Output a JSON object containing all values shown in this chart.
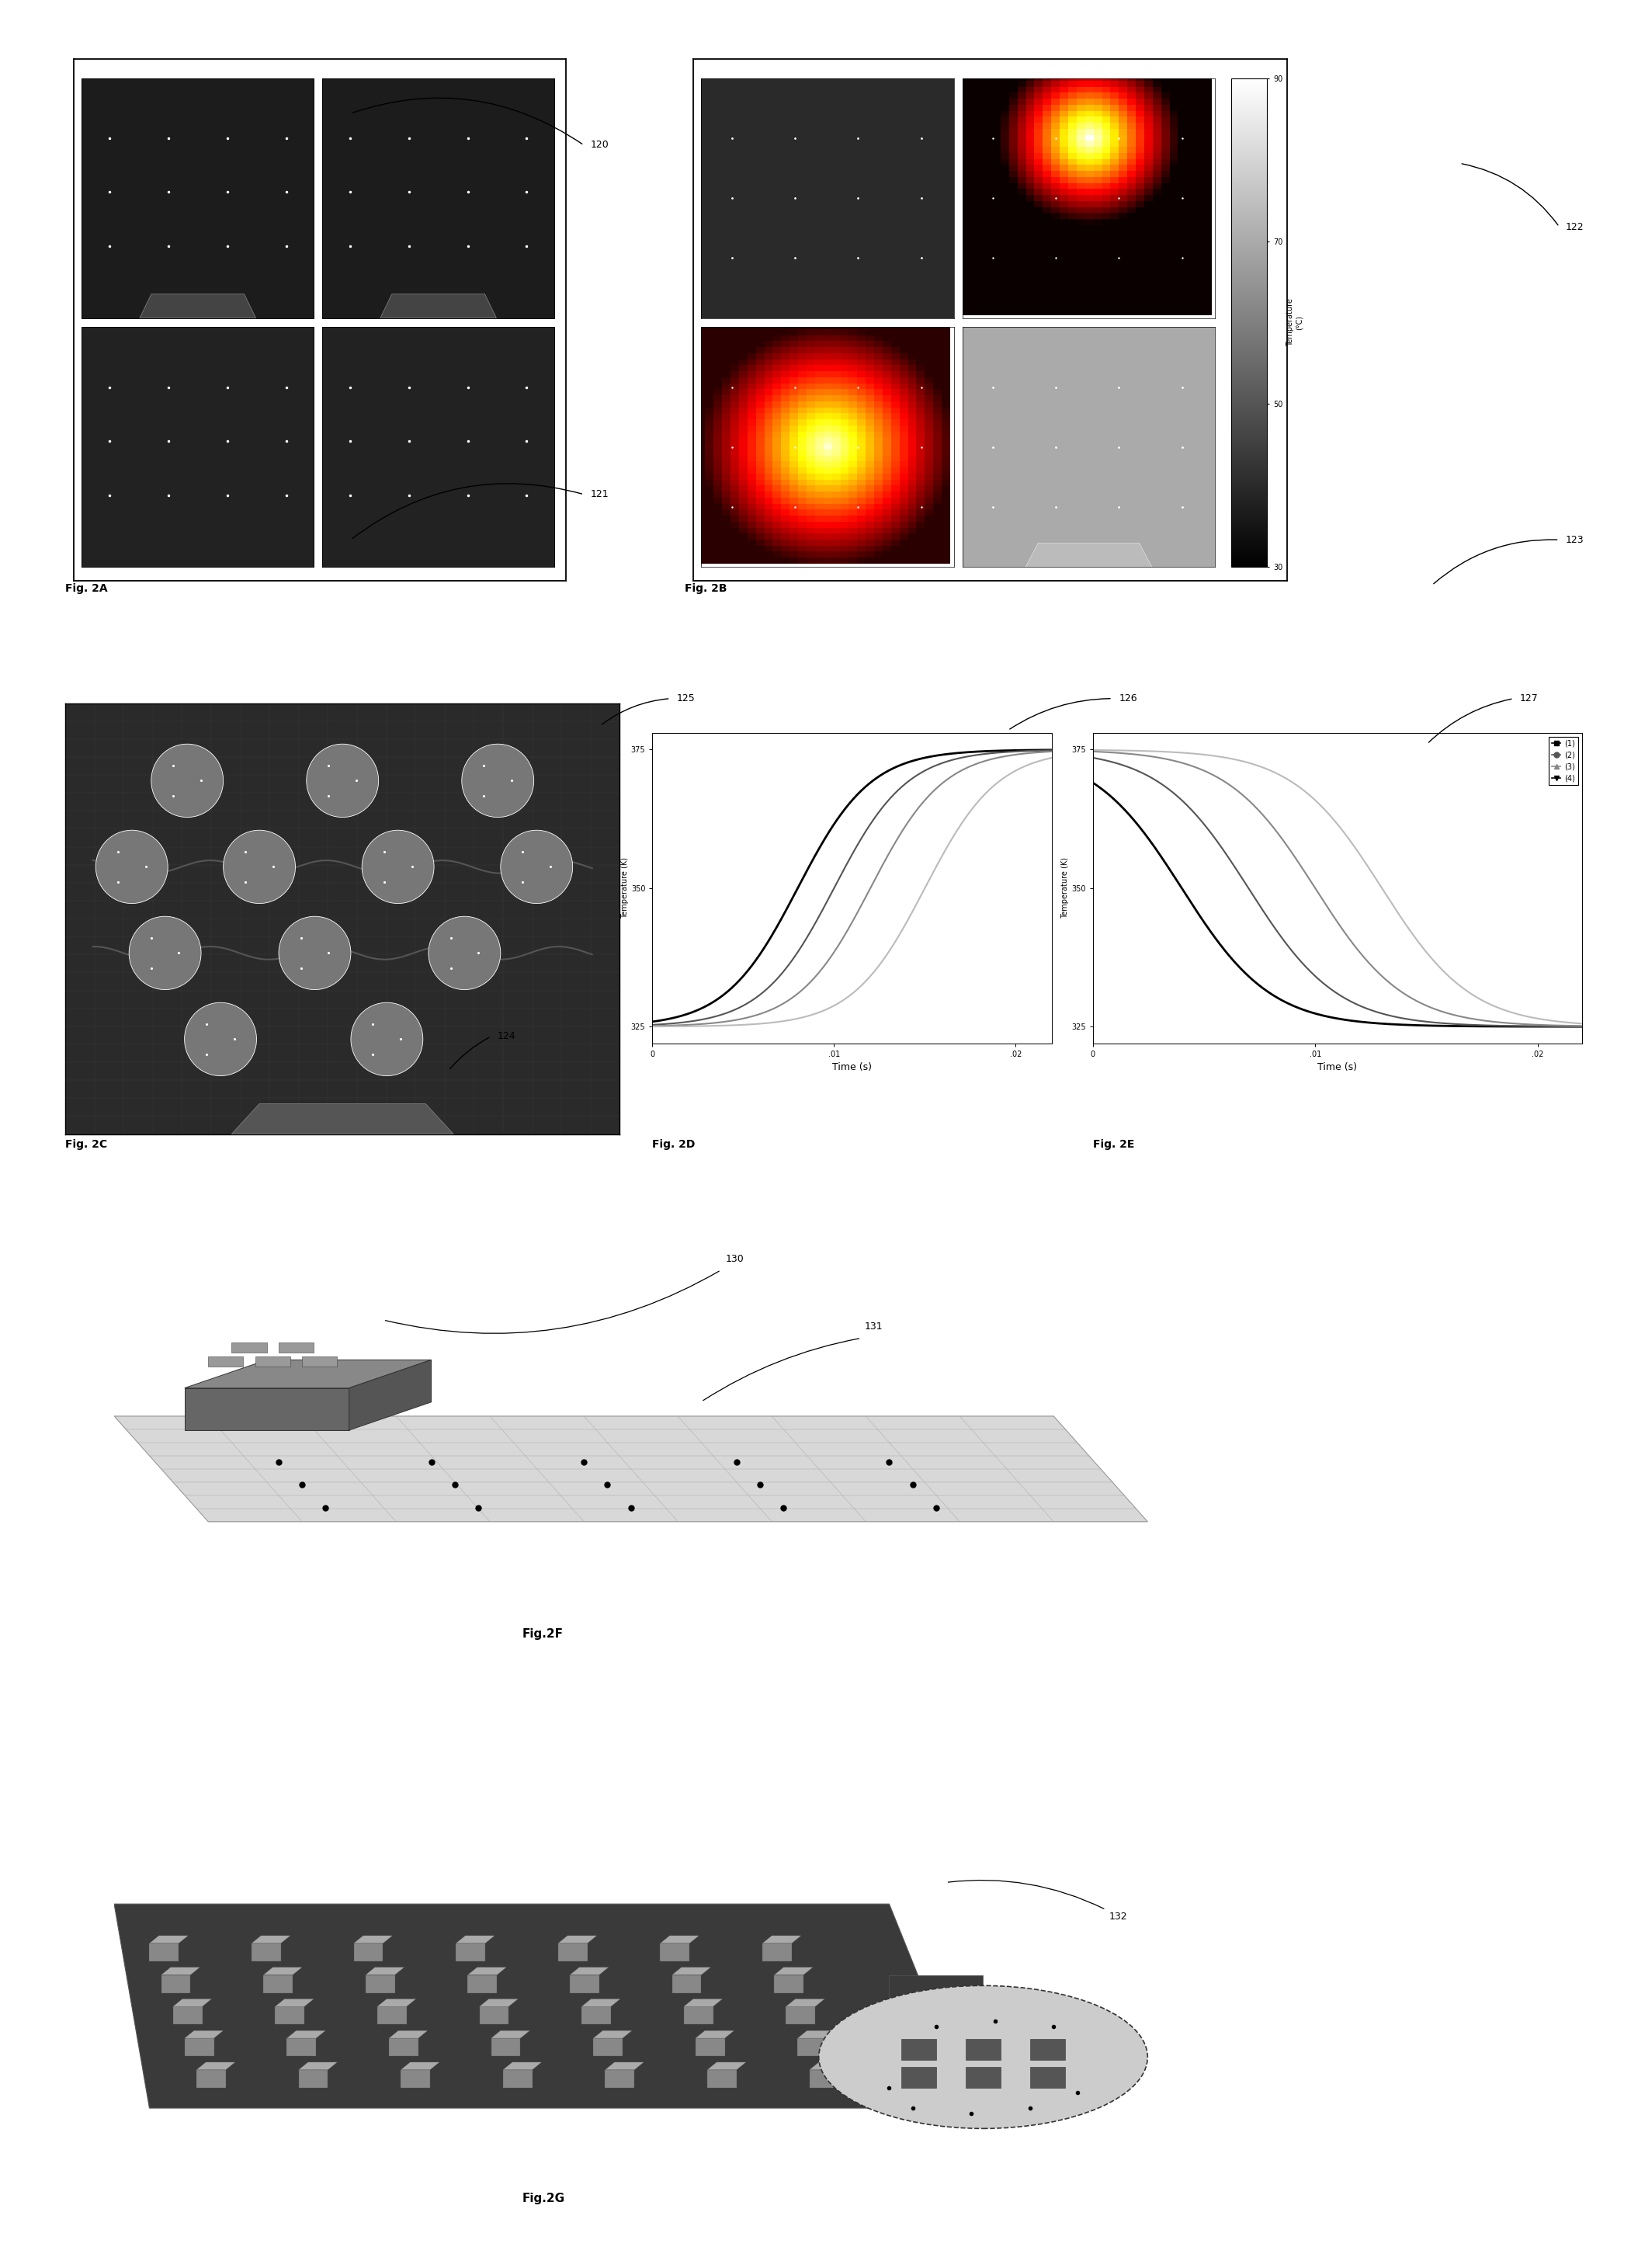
{
  "fig_size": [
    21.01,
    29.21
  ],
  "bg_color": "#ffffff",
  "fig2A_label": "Fig. 2A",
  "fig2B_label": "Fig. 2B",
  "fig2C_label": "Fig. 2C",
  "fig2D_label": "Fig. 2D",
  "fig2E_label": "Fig. 2E",
  "fig2F_label": "Fig.2F",
  "fig2G_label": "Fig.2G",
  "ref_120": "120",
  "ref_121": "121",
  "ref_122": "122",
  "ref_123": "123",
  "ref_124": "124",
  "ref_125": "125",
  "ref_126": "126",
  "ref_127": "127",
  "ref_130": "130",
  "ref_131": "131",
  "ref_132": "132",
  "colorbar_ticks": [
    90,
    70,
    50,
    30
  ],
  "colorbar_label_line1": "Temperature",
  "colorbar_label_line2": "(°C)",
  "temp_ylabel": "Temperature (K)",
  "time_xlabel": "Time (s)",
  "temp_yticks": [
    325,
    350,
    375
  ],
  "time_xticks": [
    0,
    0.01,
    0.02
  ],
  "time_xtick_labels": [
    "0",
    ".01",
    ".02"
  ],
  "legend_labels": [
    "(1)",
    "(2)",
    "(3)",
    "(4)"
  ],
  "legend_markers": [
    "s",
    "o",
    "^",
    "v"
  ],
  "legend_colors": [
    "#000000",
    "#555555",
    "#888888",
    "#000000"
  ]
}
